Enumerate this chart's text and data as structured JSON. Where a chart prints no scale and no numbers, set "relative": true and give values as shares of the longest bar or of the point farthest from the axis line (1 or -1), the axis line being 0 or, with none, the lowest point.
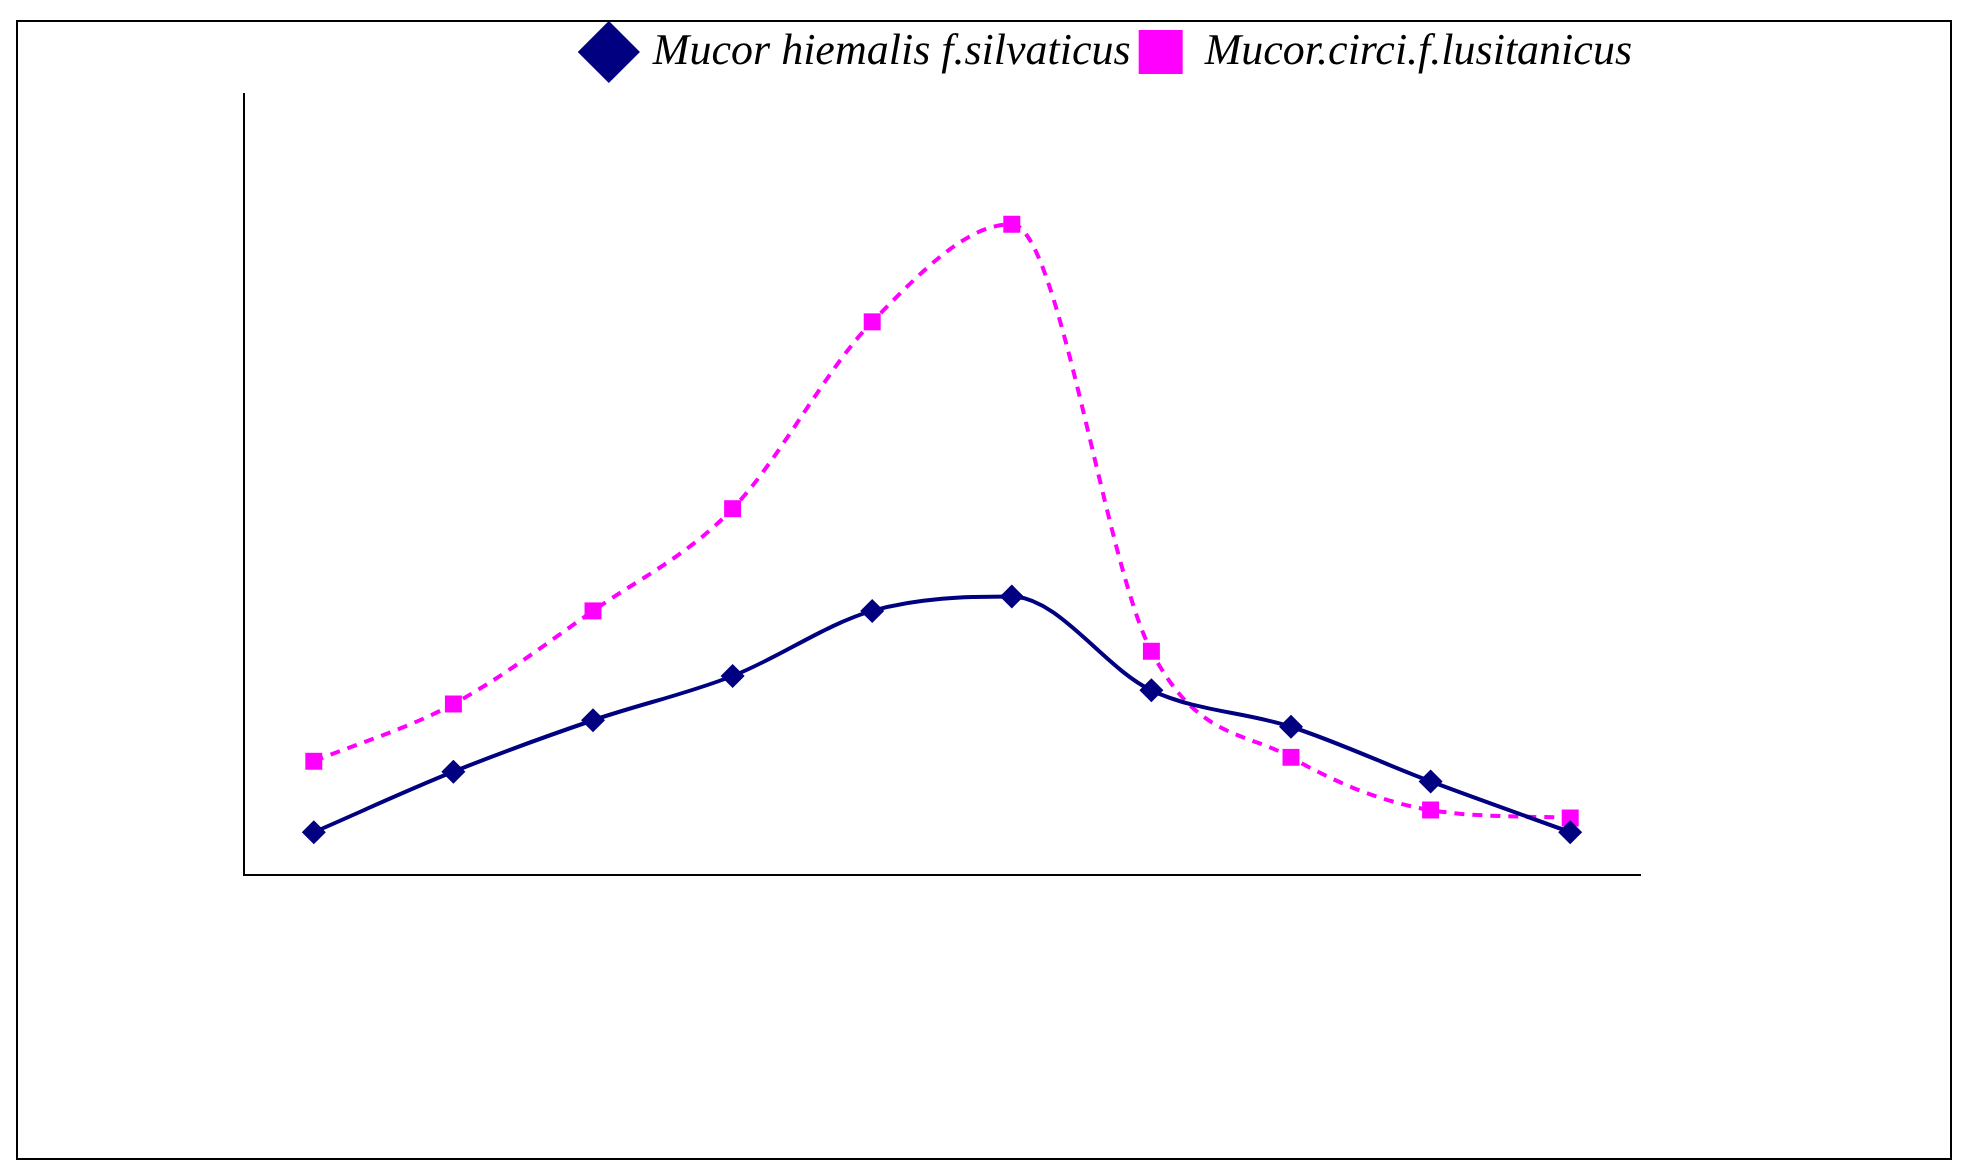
{
  "chart_data": {
    "type": "line",
    "relative": true,
    "categories": [
      null,
      null,
      null,
      null,
      null,
      null,
      null,
      null,
      null,
      null
    ],
    "series": [
      {
        "name": "Mucor hiemalis f.silvaticus",
        "color": "#000080",
        "marker": "diamond",
        "line_style": "solid",
        "values": [
          0.066,
          0.159,
          0.238,
          0.306,
          0.406,
          0.428,
          0.284,
          0.228,
          0.144,
          0.066
        ]
      },
      {
        "name": "Mucor.circi.f.lusitanicus",
        "color": "#ff00ff",
        "marker": "square",
        "line_style": "dashed",
        "values": [
          0.175,
          0.263,
          0.406,
          0.563,
          0.85,
          1,
          0.344,
          0.181,
          0.1,
          0.088
        ]
      }
    ],
    "legend": "top right",
    "grid": false
  }
}
